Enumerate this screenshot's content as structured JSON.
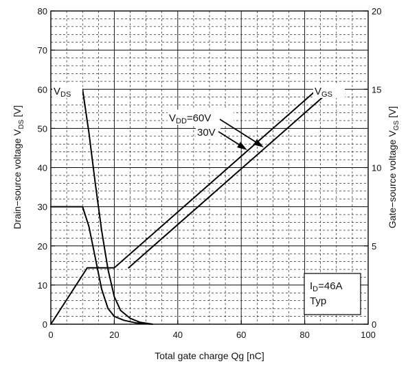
{
  "chart_data": {
    "type": "line",
    "title": "",
    "xlabel": "Total gate charge  Qg  [nC]",
    "ylabel_left": {
      "main": "Drain−source voltage  V",
      "sub": "DS",
      "unit": " [V]"
    },
    "ylabel_right": {
      "main": "Gate−source voltage  V",
      "sub": "GS",
      "unit": "  [V]"
    },
    "xlim": [
      0,
      100
    ],
    "ylim_left": [
      0,
      80
    ],
    "ylim_right": [
      0,
      20
    ],
    "x_ticks": [
      "0",
      "20",
      "40",
      "60",
      "80",
      "100"
    ],
    "y_left_ticks": [
      "0",
      "10",
      "20",
      "30",
      "40",
      "50",
      "60",
      "70",
      "80"
    ],
    "y_right_ticks": [
      "0",
      "5",
      "10",
      "15",
      "20"
    ],
    "grid": true,
    "series": [
      {
        "name": "VDS, VDD=60V",
        "axis": "left",
        "x": [
          10,
          12,
          14,
          16,
          18,
          20,
          22,
          25,
          28,
          32
        ],
        "y": [
          60,
          49,
          36,
          24,
          14,
          7,
          3.5,
          1.5,
          0.5,
          0
        ]
      },
      {
        "name": "VDS, VDD=30V",
        "axis": "left",
        "x": [
          0,
          10,
          12,
          14,
          16,
          18,
          20,
          23,
          27,
          32
        ],
        "y": [
          30,
          30,
          25,
          17,
          9,
          4,
          2,
          1,
          0.3,
          0
        ]
      },
      {
        "name": "VGS, VDD=30V",
        "axis": "right",
        "x": [
          0,
          11.5,
          20,
          84
        ],
        "y": [
          0,
          3.6,
          3.6,
          15
        ]
      },
      {
        "name": "VGS, VDD=60V",
        "axis": "right",
        "x": [
          24.5,
          88.5
        ],
        "y": [
          3.6,
          15
        ]
      }
    ],
    "annotations": {
      "vds": {
        "main": "V",
        "sub": "DS"
      },
      "vgs": {
        "main": "V",
        "sub": "GS"
      },
      "vdd_60": {
        "main": "V",
        "sub": "DD",
        "rest": "=60V"
      },
      "vdd_30": "30V",
      "info_id": {
        "main": "I",
        "sub": "D",
        "rest": "=46A"
      },
      "info_typ": "Typ"
    }
  }
}
